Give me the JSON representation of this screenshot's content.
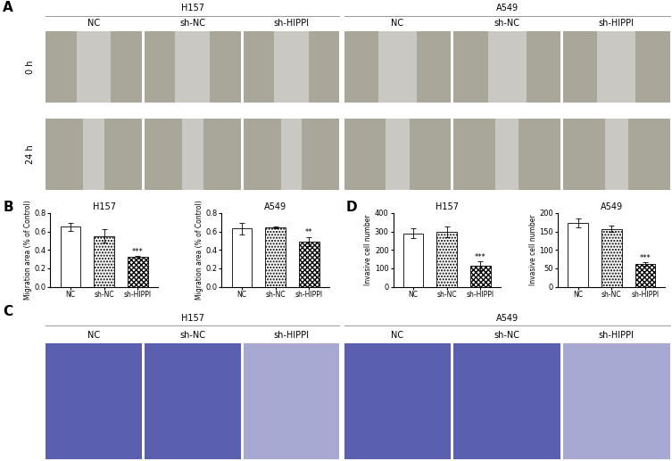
{
  "image_panels": [
    {
      "label": "A",
      "cell_lines": [
        "H157",
        "A549"
      ],
      "groups": [
        "NC",
        "sh-NC",
        "sh-HIPPI"
      ],
      "times": [
        "0 h",
        "24 h"
      ]
    },
    {
      "label": "C",
      "cell_lines": [
        "H157",
        "A549"
      ],
      "groups": [
        "NC",
        "sh-NC",
        "sh-HIPPI"
      ]
    }
  ],
  "chart_data": [
    {
      "panel": "B",
      "type": "bar",
      "title": "H157",
      "ylabel": "Migration area (% of Control)",
      "categories": [
        "NC",
        "sh-NC",
        "sh-HIPPI"
      ],
      "values": [
        0.65,
        0.55,
        0.32
      ],
      "errors": [
        0.04,
        0.07,
        0.01
      ],
      "annotations": [
        null,
        null,
        "***"
      ],
      "colors": [
        "#ffffff",
        "#ffffff",
        "#ffffff"
      ],
      "ylim": [
        0,
        0.8
      ],
      "yticks": [
        {
          "value": 0,
          "label": "0.0"
        },
        0.2,
        0.4,
        0.6,
        0.8
      ]
    },
    {
      "type": "bar",
      "title": "A549",
      "ylabel": "Migration area (% of Control)",
      "categories": [
        "NC",
        "sh-NC",
        "sh-HIPPI"
      ],
      "values": [
        0.63,
        0.64,
        0.49
      ],
      "errors": [
        0.06,
        0.01,
        0.05
      ],
      "annotations": [
        null,
        null,
        "**"
      ],
      "colors": [
        "#ffffff",
        "#ffffff",
        "#ffffff"
      ],
      "ylim": [
        0,
        0.8
      ],
      "yticks": [
        {
          "value": 0,
          "label": "0.0"
        },
        0.2,
        0.4,
        0.6,
        0.8
      ]
    },
    {
      "panel": "D",
      "type": "bar",
      "title": "H157",
      "ylabel": "Invasive cell number",
      "categories": [
        "NC",
        "sh-NC",
        "sh-HIPPI"
      ],
      "values": [
        290,
        298,
        113
      ],
      "errors": [
        25,
        28,
        25
      ],
      "annotations": [
        null,
        null,
        "***"
      ],
      "colors": [
        "#ffffff",
        "#ffffff",
        "#ffffff"
      ],
      "ylim": [
        0,
        400
      ],
      "yticks": [
        0,
        100,
        200,
        300,
        400
      ]
    },
    {
      "type": "bar",
      "title": "A549",
      "ylabel": "Invasive cell number",
      "categories": [
        "NC",
        "sh-NC",
        "sh-HIPPI"
      ],
      "values": [
        173,
        157,
        61
      ],
      "errors": [
        12,
        8,
        5
      ],
      "annotations": [
        null,
        null,
        "***"
      ],
      "colors": [
        "#ffffff",
        "#ffffff",
        "#ffffff"
      ],
      "ylim": [
        0,
        200
      ],
      "yticks": [
        0,
        50,
        100,
        150,
        200
      ]
    }
  ]
}
